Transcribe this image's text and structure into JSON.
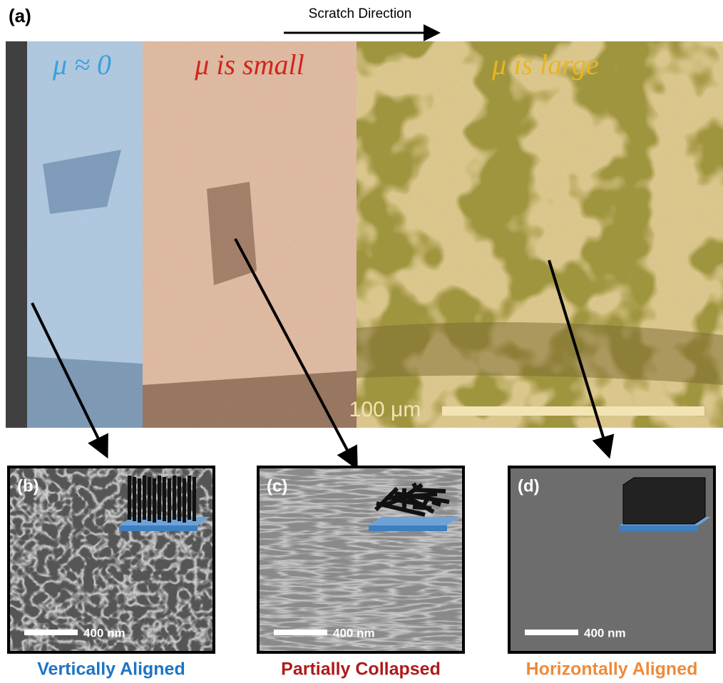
{
  "figure": {
    "panel_a": {
      "label": "(a)",
      "direction": "Scratch Direction",
      "regions": [
        "μ ≈ 0",
        "μ is small",
        "μ is large"
      ],
      "scale_bar": "100 μm"
    },
    "panels": [
      {
        "label": "(b)",
        "scale_bar": "400 nm",
        "caption": "Vertically Aligned"
      },
      {
        "label": "(c)",
        "scale_bar": "400 nm",
        "caption": "Partially Collapsed"
      },
      {
        "label": "(d)",
        "scale_bar": "400 nm",
        "caption": "Horizontally Aligned"
      }
    ]
  }
}
